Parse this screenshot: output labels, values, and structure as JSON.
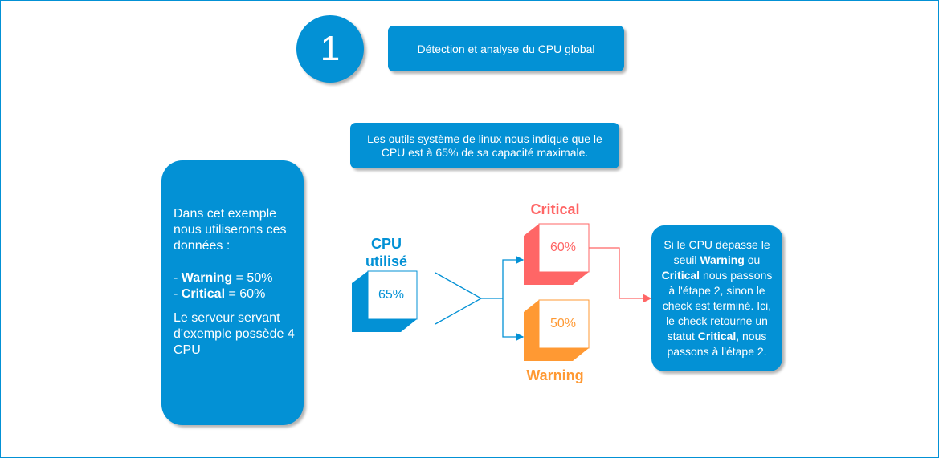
{
  "step": {
    "number": "1",
    "title": "Détection et analyse du CPU global"
  },
  "info": "Les outils système de linux nous indique que le CPU est à 65% de sa capacité maximale.",
  "left": {
    "intro": "Dans cet exemple nous utiliserons ces données :",
    "warning_label": "Warning",
    "warning_value": " = 50%",
    "critical_label": "Critical",
    "critical_value": " = 60%",
    "server": "Le serveur servant d'exemple possède 4 CPU"
  },
  "cpu": {
    "label_line1": "CPU",
    "label_line2": "utilisé",
    "value": "65%"
  },
  "critical": {
    "label": "Critical",
    "value": "60%"
  },
  "warning": {
    "label": "Warning",
    "value": "50%"
  },
  "right": {
    "t1": "Si le CPU dépasse le seuil ",
    "b1": "Warning",
    "t2": " ou ",
    "b2": "Critical",
    "t3": " nous passons à l'étape 2, sinon le check est terminé. Ici, le check retourne un statut ",
    "b3": "Critical",
    "t4": ", nous passons à l'étape 2."
  },
  "colors": {
    "blue": "#0391d5",
    "critical": "#ff6666",
    "warning": "#ff9933"
  }
}
